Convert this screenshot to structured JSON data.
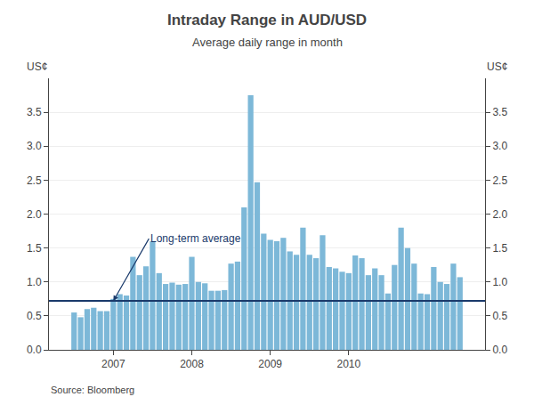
{
  "chart_data": {
    "type": "bar",
    "title": "Intraday Range in AUD/USD",
    "subtitle": "Average daily range in month",
    "ylabel_left": "US¢",
    "ylabel_right": "US¢",
    "source": "Source: Bloomberg",
    "categories": [
      null,
      null,
      null,
      null,
      null,
      null,
      "2007",
      null,
      null,
      null,
      null,
      null,
      null,
      null,
      null,
      null,
      null,
      null,
      "2008",
      null,
      null,
      null,
      null,
      null,
      null,
      null,
      null,
      null,
      null,
      null,
      "2009",
      null,
      null,
      null,
      null,
      null,
      null,
      null,
      null,
      null,
      null,
      null,
      "2010",
      null,
      null,
      null,
      null,
      null,
      null,
      null,
      null,
      null,
      null,
      null,
      null,
      null,
      null,
      null,
      null,
      null
    ],
    "values": [
      0.55,
      0.48,
      0.6,
      0.62,
      0.57,
      0.57,
      0.75,
      0.82,
      0.8,
      1.37,
      1.1,
      1.23,
      1.6,
      1.13,
      0.97,
      0.99,
      0.96,
      0.97,
      1.37,
      1.0,
      0.98,
      0.87,
      0.87,
      0.88,
      1.27,
      1.3,
      2.1,
      3.75,
      2.47,
      1.71,
      1.62,
      1.6,
      1.65,
      1.45,
      1.4,
      1.8,
      1.4,
      1.35,
      1.69,
      1.22,
      1.2,
      1.15,
      1.13,
      1.39,
      1.35,
      1.1,
      1.2,
      1.1,
      0.83,
      1.25,
      1.8,
      1.5,
      1.27,
      0.83,
      0.82,
      1.22,
      1.0,
      0.97,
      1.27,
      1.07
    ],
    "color": "#7db8d8",
    "reference_line": {
      "value": 0.72,
      "color": "#1a3a6b",
      "annotation": "Long-term average"
    },
    "ylim": [
      0,
      4.0
    ],
    "yticks": [
      {
        "value": 0.0,
        "label": "0.0"
      },
      0.5,
      {
        "value": 1.0,
        "label": "1.0"
      },
      1.5,
      {
        "value": 2.0,
        "label": "2.0"
      },
      2.5,
      {
        "value": 3.0,
        "label": "3.0"
      },
      3.5
    ],
    "y2lim": [
      0,
      4.0
    ],
    "y2ticks": [
      {
        "value": 0.0,
        "label": "0.0"
      },
      0.5,
      {
        "value": 1.0,
        "label": "1.0"
      },
      1.5,
      {
        "value": 2.0,
        "label": "2.0"
      },
      2.5,
      {
        "value": 3.0,
        "label": "3.0"
      },
      3.5
    ],
    "grid": true
  }
}
